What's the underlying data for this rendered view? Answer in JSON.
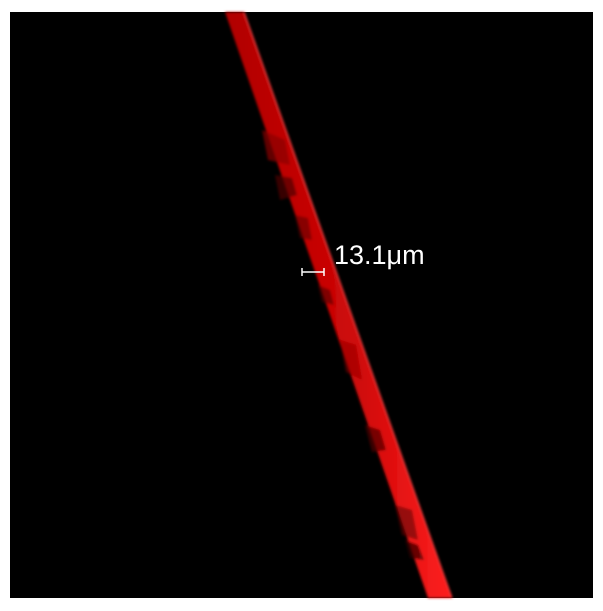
{
  "annotation": {
    "measurement": "13.1μm"
  }
}
